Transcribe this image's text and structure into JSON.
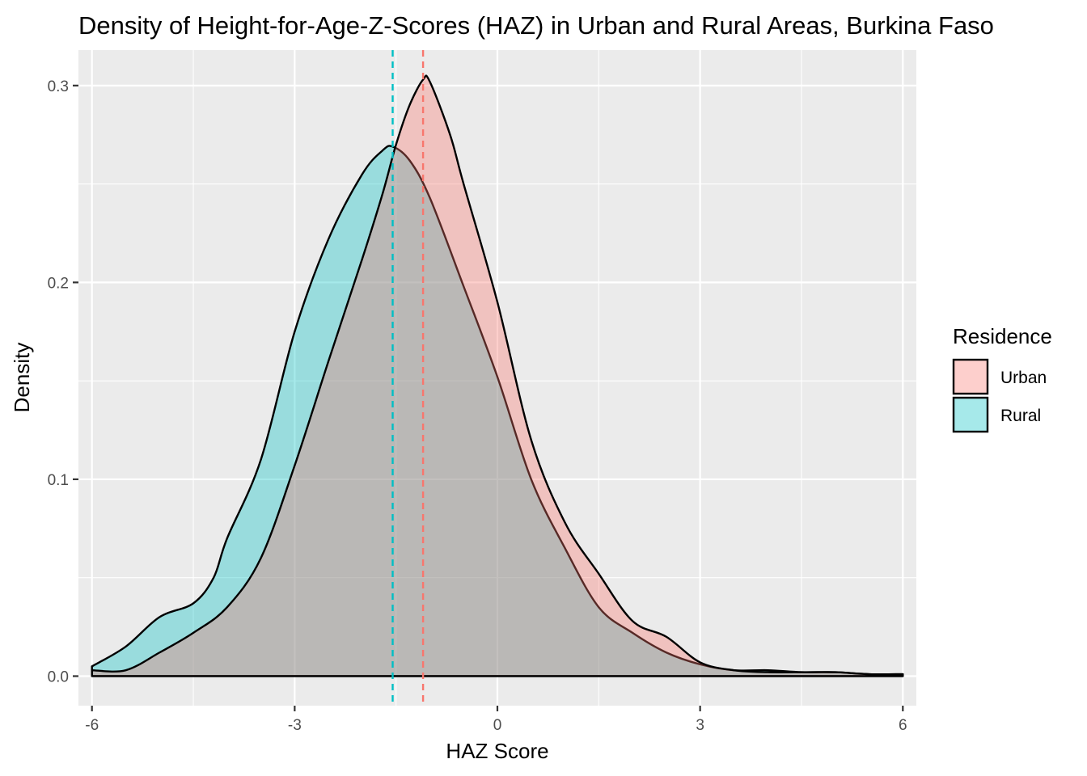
{
  "chart_data": {
    "type": "area",
    "title": "Density of Height-for-Age-Z-Scores (HAZ) in Urban and Rural Areas, Burkina Faso",
    "xlabel": "HAZ Score",
    "ylabel": "Density",
    "xlim": [
      -6.2,
      6.2
    ],
    "ylim": [
      -0.015,
      0.318
    ],
    "x_ticks": [
      -6,
      -3,
      0,
      3,
      6
    ],
    "x_tick_labels": [
      "-6",
      "-3",
      "0",
      "3",
      "6"
    ],
    "y_ticks": [
      0.0,
      0.1,
      0.2,
      0.3
    ],
    "y_tick_labels": [
      "0.0",
      "0.1",
      "0.2",
      "0.3"
    ],
    "grid": true,
    "legend": {
      "title": "Residence",
      "position": "right",
      "entries": [
        "Urban",
        "Rural"
      ]
    },
    "series": [
      {
        "name": "Rural",
        "color": "#00BFC4",
        "fill_opacity": 0.35,
        "mean_line": -1.55,
        "x": [
          -6.0,
          -5.5,
          -5.0,
          -4.5,
          -4.2,
          -4.0,
          -3.5,
          -3.0,
          -2.5,
          -2.0,
          -1.7,
          -1.55,
          -1.3,
          -1.0,
          -0.5,
          0.0,
          0.5,
          1.0,
          1.5,
          2.0,
          2.5,
          3.0,
          3.5,
          4.0,
          4.5,
          5.0,
          5.5,
          6.0
        ],
        "y": [
          0.005,
          0.015,
          0.03,
          0.037,
          0.05,
          0.07,
          0.11,
          0.175,
          0.222,
          0.255,
          0.267,
          0.269,
          0.262,
          0.243,
          0.198,
          0.152,
          0.1,
          0.065,
          0.035,
          0.022,
          0.012,
          0.006,
          0.003,
          0.003,
          0.002,
          0.002,
          0.001,
          0.001
        ]
      },
      {
        "name": "Urban",
        "color": "#F8766D",
        "fill_opacity": 0.35,
        "mean_line": -1.1,
        "x": [
          -6.0,
          -5.5,
          -5.0,
          -4.5,
          -4.0,
          -3.5,
          -3.0,
          -2.5,
          -2.0,
          -1.7,
          -1.5,
          -1.3,
          -1.1,
          -1.0,
          -0.7,
          -0.5,
          0.0,
          0.5,
          1.0,
          1.5,
          2.0,
          2.5,
          3.0,
          3.5,
          4.0,
          4.5,
          5.0,
          5.5,
          6.0
        ],
        "y": [
          0.003,
          0.003,
          0.012,
          0.022,
          0.035,
          0.06,
          0.107,
          0.16,
          0.212,
          0.245,
          0.27,
          0.29,
          0.303,
          0.302,
          0.275,
          0.25,
          0.19,
          0.12,
          0.078,
          0.052,
          0.028,
          0.02,
          0.007,
          0.003,
          0.002,
          0.002,
          0.002,
          0.001,
          0.001
        ]
      }
    ]
  }
}
